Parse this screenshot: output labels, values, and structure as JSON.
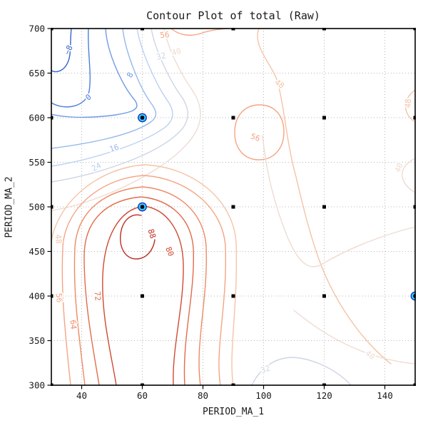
{
  "title": "Contour Plot of total (Raw)",
  "chart_data": {
    "type": "contour",
    "title": "Contour Plot of total (Raw)",
    "xlabel": "PERIOD_MA_1",
    "ylabel": "PERIOD_MA_2",
    "x_range": [
      30,
      150
    ],
    "y_range": [
      300,
      700
    ],
    "x_ticks": [
      40,
      60,
      80,
      100,
      120,
      140
    ],
    "y_ticks": [
      300,
      350,
      400,
      450,
      500,
      550,
      600,
      650,
      700
    ],
    "grid": "dotted",
    "levels": [
      -8,
      0,
      8,
      16,
      24,
      32,
      40,
      48,
      56,
      64,
      72,
      80,
      88
    ],
    "level_colors": {
      "-8": "#3565cd",
      "0": "#4f7fdb",
      "8": "#6f9ae4",
      "16": "#97b8ec",
      "24": "#bccff0",
      "32": "#ccd6e4",
      "40": "#efdbd1",
      "48": "#f6c3a6",
      "56": "#f4a583",
      "64": "#ee8a63",
      "72": "#e26c4a",
      "80": "#d04a33",
      "88": "#bb2e23"
    },
    "sample_grid_x": [
      30,
      60,
      90,
      120,
      150
    ],
    "sample_grid_y": [
      300,
      400,
      500,
      600,
      700
    ],
    "grid_marker_color": "#000000",
    "highlighted_points": [
      {
        "x": 60,
        "y": 600
      },
      {
        "x": 60,
        "y": 500
      },
      {
        "x": 150,
        "y": 400
      }
    ],
    "highlight_colors": {
      "fill": "#1b2fc4",
      "ring": "#2bd9f2",
      "center": "#000000"
    },
    "contour_labels": [
      {
        "v": -8,
        "x": 35.6,
        "y": 676,
        "rot": -65
      },
      {
        "v": 0,
        "x": 42.2,
        "y": 623,
        "rot": -38
      },
      {
        "v": 8,
        "x": 55.9,
        "y": 648,
        "rot": -60
      },
      {
        "v": 16,
        "x": 50.7,
        "y": 566,
        "rot": -18
      },
      {
        "v": 24,
        "x": 44.8,
        "y": 545,
        "rot": -30
      },
      {
        "v": 32,
        "x": 66.2,
        "y": 669,
        "rot": -12
      },
      {
        "v": 40,
        "x": 71.2,
        "y": 674,
        "rot": -15
      },
      {
        "v": 56,
        "x": 67.4,
        "y": 693,
        "rot": -5
      },
      {
        "v": 48,
        "x": 105.3,
        "y": 638,
        "rot": 38
      },
      {
        "v": 56,
        "x": 97.3,
        "y": 578,
        "rot": 20
      },
      {
        "v": 48,
        "x": 147.6,
        "y": 616,
        "rot": -85
      },
      {
        "v": 40,
        "x": 144.6,
        "y": 544,
        "rot": -70
      },
      {
        "v": 40,
        "x": 135.2,
        "y": 334,
        "rot": 40
      },
      {
        "v": 32,
        "x": 100.6,
        "y": 318,
        "rot": -20
      },
      {
        "v": 48,
        "x": 32.4,
        "y": 464,
        "rot": 85
      },
      {
        "v": 56,
        "x": 32.6,
        "y": 398,
        "rot": 85
      },
      {
        "v": 64,
        "x": 37.3,
        "y": 368,
        "rot": 85
      },
      {
        "v": 72,
        "x": 45.3,
        "y": 400,
        "rot": 85
      },
      {
        "v": 80,
        "x": 69.1,
        "y": 450,
        "rot": 65
      },
      {
        "v": 88,
        "x": 63.2,
        "y": 470,
        "rot": 72
      }
    ]
  }
}
